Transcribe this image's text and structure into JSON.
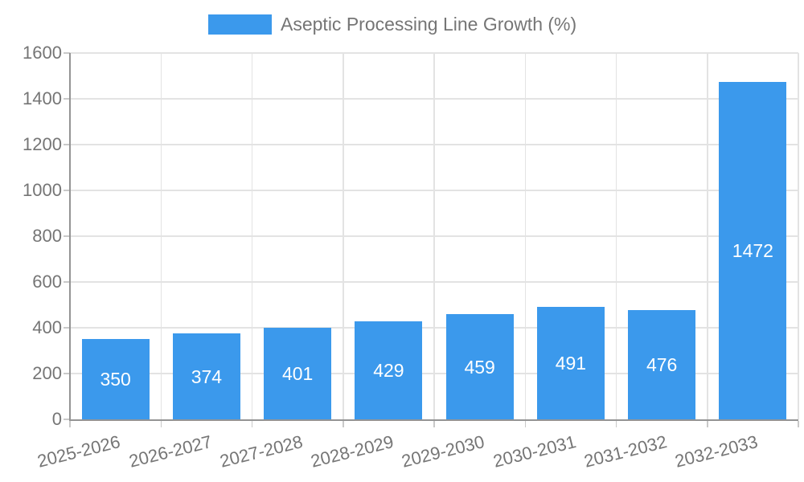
{
  "legend": {
    "label": "Aseptic Processing Line Growth (%)"
  },
  "chart_data": {
    "type": "bar",
    "title": "Aseptic Processing Line Growth (%)",
    "categories": [
      "2025-2026",
      "2026-2027",
      "2027-2028",
      "2028-2029",
      "2029-2030",
      "2030-2031",
      "2031-2032",
      "2032-2033"
    ],
    "values": [
      350,
      374,
      401,
      429,
      459,
      491,
      476,
      1472
    ],
    "value_labels": [
      "350",
      "374",
      "401",
      "429",
      "459",
      "491",
      "476",
      "1472"
    ],
    "xlabel": "",
    "ylabel": "",
    "ylim": [
      0,
      1600
    ],
    "ytick_step": 200,
    "ytick_labels": [
      "0",
      "200",
      "400",
      "600",
      "800",
      "1000",
      "1200",
      "1400",
      "1600"
    ],
    "grid": true,
    "legend_position": "top-center",
    "colors": {
      "bar": "#3B99EC",
      "value_text": "#FFFFFF",
      "axis_text": "#757575",
      "grid_line": "#E3E3E3",
      "axis_line": "#949494",
      "tick_mark": "#C9C9C9",
      "background": "#FFFFFF"
    }
  }
}
